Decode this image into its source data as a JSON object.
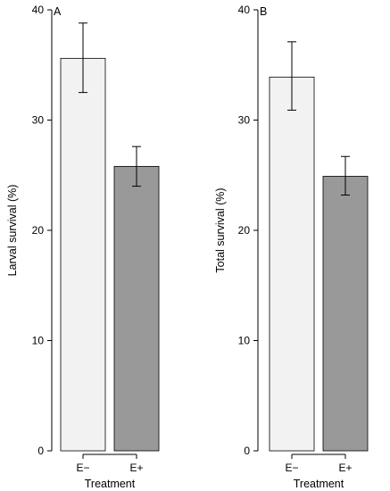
{
  "chart_data": [
    {
      "type": "bar",
      "panel_label": "A",
      "categories": [
        "E−",
        "E+"
      ],
      "values": [
        35.6,
        25.8
      ],
      "error_low": [
        32.5,
        24.0
      ],
      "error_high": [
        38.8,
        27.6
      ],
      "colors": [
        "#f2f2f2",
        "#999999"
      ],
      "xlabel": "Treatment",
      "ylabel": "Larval survival (%)",
      "ylim": [
        0,
        40
      ],
      "yticks": [
        0,
        10,
        20,
        30,
        40
      ],
      "grid": false
    },
    {
      "type": "bar",
      "panel_label": "B",
      "categories": [
        "E−",
        "E+"
      ],
      "values": [
        33.9,
        24.9
      ],
      "error_low": [
        30.9,
        23.2
      ],
      "error_high": [
        37.1,
        26.7
      ],
      "colors": [
        "#f2f2f2",
        "#999999"
      ],
      "xlabel": "Treatment",
      "ylabel": "Total survival (%)",
      "ylim": [
        0,
        40
      ],
      "yticks": [
        0,
        10,
        20,
        30,
        40
      ],
      "grid": false
    }
  ]
}
